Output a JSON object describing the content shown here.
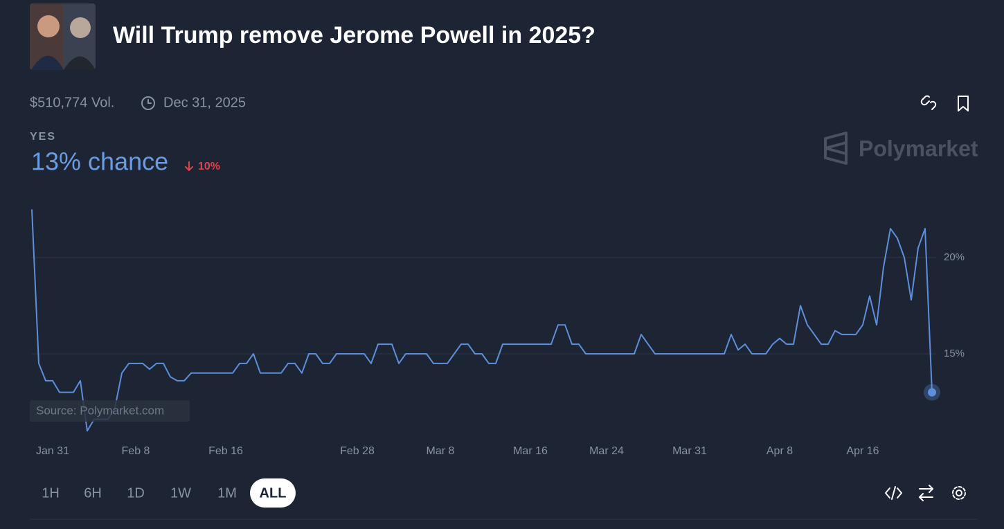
{
  "header": {
    "title": "Will Trump remove Jerome Powell in 2025?",
    "volume": "$510,774 Vol.",
    "end_date": "Dec 31, 2025"
  },
  "outcome": {
    "label": "YES",
    "chance": "13% chance",
    "change": "10%"
  },
  "watermark": "Polymarket",
  "source": "Source: Polymarket.com",
  "time_ranges": [
    "1H",
    "6H",
    "1D",
    "1W",
    "1M",
    "ALL"
  ],
  "selected_range": "ALL",
  "chart_data": {
    "type": "line",
    "color": "#5e8fdb",
    "categories": [
      null,
      null,
      null,
      "Jan 31",
      null,
      null,
      null,
      null,
      null,
      null,
      null,
      null,
      null,
      null,
      null,
      "Feb 8",
      null,
      null,
      null,
      null,
      null,
      null,
      null,
      null,
      null,
      null,
      null,
      null,
      "Feb 16",
      null,
      null,
      null,
      null,
      null,
      null,
      null,
      null,
      null,
      null,
      null,
      null,
      null,
      null,
      null,
      null,
      null,
      null,
      "Feb 28",
      null,
      null,
      null,
      null,
      null,
      null,
      null,
      null,
      null,
      null,
      null,
      "Mar 8",
      null,
      null,
      null,
      null,
      null,
      null,
      null,
      null,
      null,
      null,
      null,
      null,
      "Mar 16",
      null,
      null,
      null,
      null,
      null,
      null,
      null,
      null,
      null,
      null,
      "Mar 24",
      null,
      null,
      null,
      null,
      null,
      null,
      null,
      null,
      null,
      null,
      null,
      "Mar 31",
      null,
      null,
      null,
      null,
      null,
      null,
      null,
      null,
      null,
      null,
      null,
      null,
      "Apr 8",
      null,
      null,
      null,
      null,
      null,
      null,
      null,
      null,
      null,
      null,
      null,
      "Apr 16",
      null,
      null,
      null,
      null,
      null,
      null,
      null,
      null,
      null,
      null
    ],
    "values": [
      22.5,
      14.5,
      13.6,
      13.6,
      13,
      13,
      13,
      13.6,
      11,
      11.6,
      11.6,
      11.6,
      12.2,
      14,
      14.5,
      14.5,
      14.5,
      14.2,
      14.5,
      14.5,
      13.8,
      13.6,
      13.6,
      14,
      14,
      14,
      14,
      14,
      14,
      14,
      14.5,
      14.5,
      15,
      14,
      14,
      14,
      14,
      14.5,
      14.5,
      14,
      15,
      15,
      14.5,
      14.5,
      15,
      15,
      15,
      15,
      15,
      14.5,
      15.5,
      15.5,
      15.5,
      14.5,
      15,
      15,
      15,
      15,
      14.5,
      14.5,
      14.5,
      15,
      15.5,
      15.5,
      15,
      15,
      14.5,
      14.5,
      15.5,
      15.5,
      15.5,
      15.5,
      15.5,
      15.5,
      15.5,
      15.5,
      16.5,
      16.5,
      15.5,
      15.5,
      15,
      15,
      15,
      15,
      15,
      15,
      15,
      15,
      16,
      15.5,
      15,
      15,
      15,
      15,
      15,
      15,
      15,
      15,
      15,
      15,
      15,
      16,
      15.2,
      15.5,
      15,
      15,
      15,
      15.5,
      15.8,
      15.5,
      15.5,
      17.5,
      16.5,
      16,
      15.5,
      15.5,
      16.2,
      16,
      16,
      16,
      16.5,
      18,
      16.5,
      19.5,
      21.5,
      21,
      20,
      17.8,
      20.5,
      21.5,
      13
    ],
    "ylim": [
      10.9,
      22.8
    ],
    "yticks": [
      {
        "value": 15,
        "label": "15%"
      },
      {
        "value": 20,
        "label": "20%"
      }
    ],
    "grid": true,
    "y_axis_side": "right",
    "end_marker": true
  }
}
